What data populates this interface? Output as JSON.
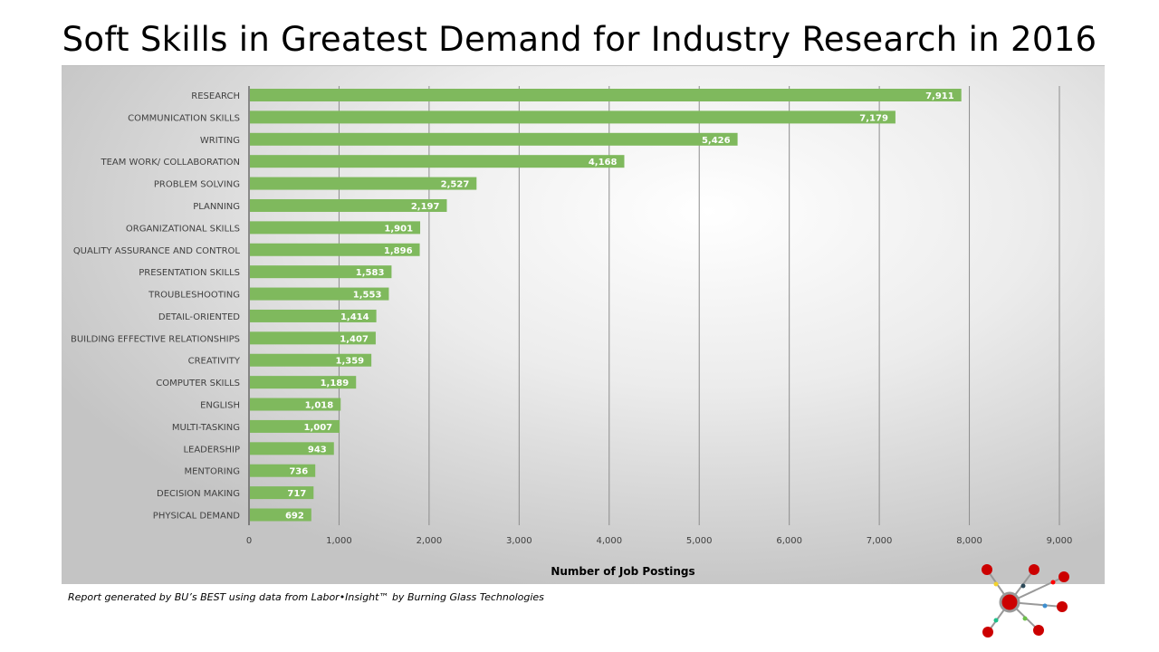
{
  "chart_data": {
    "type": "bar",
    "orientation": "horizontal",
    "title": "Soft Skills in Greatest Demand for Industry Research in 2016",
    "xlabel": "Number of Job Postings",
    "ylabel": "",
    "xlim": [
      0,
      9000
    ],
    "xticks": [
      "0",
      "1,000",
      "2,000",
      "3,000",
      "4,000",
      "5,000",
      "6,000",
      "7,000",
      "8,000",
      "9,000"
    ],
    "grid": "vertical",
    "bar_color": "#7fb95d",
    "categories": [
      "RESEARCH",
      "COMMUNICATION SKILLS",
      "WRITING",
      "TEAM WORK/ COLLABORATION",
      "PROBLEM SOLVING",
      "PLANNING",
      "ORGANIZATIONAL SKILLS",
      "QUALITY ASSURANCE AND CONTROL",
      "PRESENTATION SKILLS",
      "TROUBLESHOOTING",
      "DETAIL-ORIENTED",
      "BUILDING EFFECTIVE RELATIONSHIPS",
      "CREATIVITY",
      "COMPUTER SKILLS",
      "ENGLISH",
      "MULTI-TASKING",
      "LEADERSHIP",
      "MENTORING",
      "DECISION MAKING",
      "PHYSICAL DEMAND"
    ],
    "values": [
      7911,
      7179,
      5426,
      4168,
      2527,
      2197,
      1901,
      1896,
      1583,
      1553,
      1414,
      1407,
      1359,
      1189,
      1018,
      1007,
      943,
      736,
      717,
      692
    ],
    "data_labels": [
      "7,911",
      "7,179",
      "5,426",
      "4,168",
      "2,527",
      "2,197",
      "1,901",
      "1,896",
      "1,583",
      "1,553",
      "1,414",
      "1,407",
      "1,359",
      "1,189",
      "1,018",
      "1,007",
      "943",
      "736",
      "717",
      "692"
    ]
  },
  "footer": "Report generated by BU’s BEST using data from Labor•Insight™ by Burning Glass Technologies"
}
